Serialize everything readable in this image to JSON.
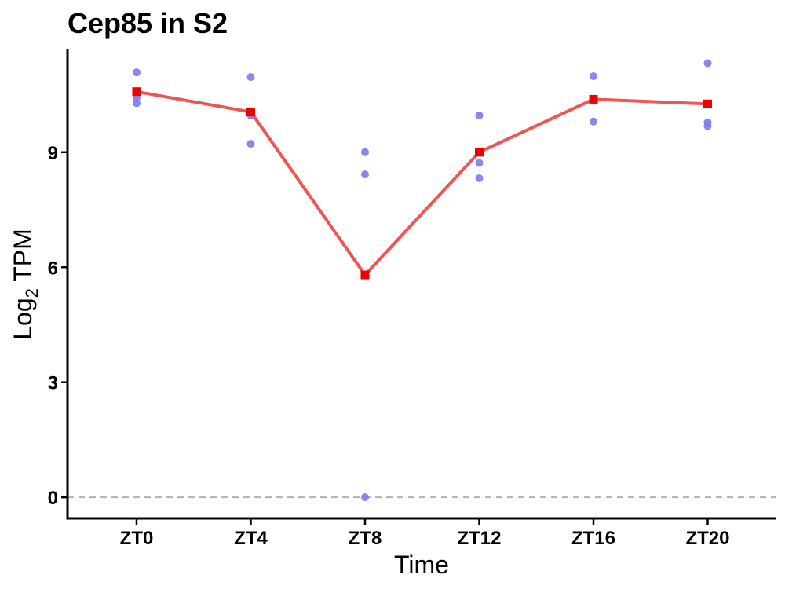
{
  "chart_data": {
    "type": "line",
    "title": "Cep85 in S2",
    "xlabel": "Time",
    "ylabel": {
      "base": "Log",
      "subscript": "2",
      "rest": " TPM"
    },
    "categories": [
      "ZT0",
      "ZT4",
      "ZT8",
      "ZT12",
      "ZT16",
      "ZT20"
    ],
    "ylim": [
      -0.55,
      11.7
    ],
    "yticks": [
      0,
      3,
      6,
      9
    ],
    "reference_line_y": 0,
    "series": [
      {
        "kind": "points",
        "color": "#7b7bef",
        "points": [
          {
            "x": "ZT0",
            "y": 11.08
          },
          {
            "x": "ZT0",
            "y": 10.42
          },
          {
            "x": "ZT0",
            "y": 10.28
          },
          {
            "x": "ZT4",
            "y": 10.96
          },
          {
            "x": "ZT4",
            "y": 9.96
          },
          {
            "x": "ZT4",
            "y": 9.22
          },
          {
            "x": "ZT8",
            "y": 9.0
          },
          {
            "x": "ZT8",
            "y": 8.42
          },
          {
            "x": "ZT8",
            "y": 0.0
          },
          {
            "x": "ZT12",
            "y": 9.96
          },
          {
            "x": "ZT12",
            "y": 8.72
          },
          {
            "x": "ZT12",
            "y": 8.32
          },
          {
            "x": "ZT16",
            "y": 10.98
          },
          {
            "x": "ZT16",
            "y": 9.8
          },
          {
            "x": "ZT20",
            "y": 11.32
          },
          {
            "x": "ZT20",
            "y": 9.78
          },
          {
            "x": "ZT20",
            "y": 9.68
          }
        ]
      },
      {
        "kind": "mean-line",
        "line_color": "#ee5555",
        "marker_color": "#ee0000",
        "values": [
          10.58,
          10.05,
          5.8,
          9.0,
          10.38,
          10.26
        ]
      }
    ]
  }
}
